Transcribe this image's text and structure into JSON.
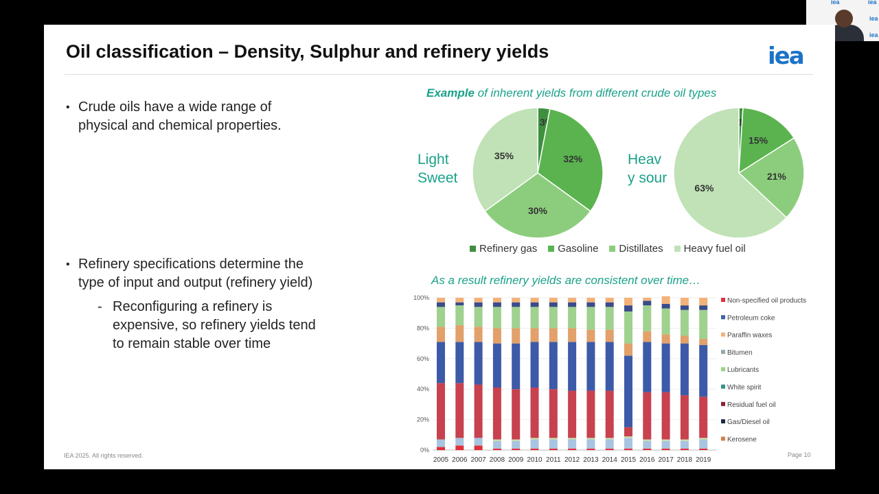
{
  "slide": {
    "title": "Oil classification – Density, Sulphur and refinery yields",
    "logo": "iea",
    "bullets": [
      {
        "line1": "Crude oils have a wide range of",
        "line2": "physical and chemical properties."
      },
      {
        "line1": "Refinery specifications determine the",
        "line2": "type of input and output (refinery yield)"
      }
    ],
    "sub_bullet": {
      "line1": "Reconfiguring a refinery is",
      "line2": "expensive, so refinery yields tend",
      "line3": "to remain stable over time"
    },
    "footer_left": "IEA 2025. All rights reserved.",
    "footer_right": "Page 10",
    "pie_title_bold": "Example",
    "pie_title_rest": " of inherent yields from different crude oil types",
    "pie_left_label": {
      "line1": "Light",
      "line2": "Sweet"
    },
    "pie_right_label": {
      "line1": "Heav",
      "line2": "y sour"
    },
    "bar_title": "As a result refinery yields are consistent over time…"
  },
  "webcam": {
    "logo": "iea"
  },
  "colors": {
    "teal": "#1aa189",
    "refinery_gas": "#3e8f3e",
    "gasoline": "#5ab34f",
    "distillates": "#8ccd7d",
    "heavy_fuel_oil": "#c0e2b6"
  },
  "chart_data": [
    {
      "type": "pie",
      "title": "Light Sweet",
      "categories": [
        "Refinery gas",
        "Gasoline",
        "Distillates",
        "Heavy fuel oil"
      ],
      "values": [
        3,
        32,
        30,
        35
      ],
      "labels": [
        "3%",
        "32%",
        "30%",
        "35%"
      ],
      "colors": [
        "#3e8f3e",
        "#5ab34f",
        "#8ccd7d",
        "#c0e2b6"
      ],
      "legend": "bottom"
    },
    {
      "type": "pie",
      "title": "Heavy sour",
      "categories": [
        "Refinery gas",
        "Gasoline",
        "Distillates",
        "Heavy fuel oil"
      ],
      "values": [
        1,
        15,
        21,
        63
      ],
      "labels": [
        "1%",
        "15%",
        "21%",
        "63%"
      ],
      "colors": [
        "#3e8f3e",
        "#5ab34f",
        "#8ccd7d",
        "#c0e2b6"
      ],
      "legend": "bottom"
    },
    {
      "type": "bar",
      "stacked": true,
      "categories": [
        "2005",
        "2006",
        "2007",
        "2008",
        "2009",
        "2010",
        "2011",
        "2012",
        "2013",
        "2014",
        "2015",
        "2016",
        "2017",
        "2018",
        "2019"
      ],
      "ylim": [
        0,
        100
      ],
      "yticks": [
        "0%",
        "20%",
        "40%",
        "60%",
        "80%",
        "100%"
      ],
      "legend": "right",
      "legend_entries": [
        {
          "name": "Non-specified oil products",
          "color": "#e0303a"
        },
        {
          "name": "Petroleum coke",
          "color": "#3c63a8"
        },
        {
          "name": "Paraffin waxes",
          "color": "#f2b27a"
        },
        {
          "name": "Bitumen",
          "color": "#9aa7b0"
        },
        {
          "name": "Lubricants",
          "color": "#9ad28c"
        },
        {
          "name": "White spirit",
          "color": "#3b8f8a"
        },
        {
          "name": "Residual fuel oil",
          "color": "#8b2333"
        },
        {
          "name": "Gas/Diesel oil",
          "color": "#1f2a44"
        },
        {
          "name": "Kerosene",
          "color": "#d4814a"
        }
      ],
      "series": [
        {
          "color": "#e0303a",
          "values": [
            2,
            3,
            3,
            1,
            1,
            1,
            1,
            1,
            1,
            1,
            1,
            1,
            1,
            1,
            1
          ]
        },
        {
          "color": "#a8c4e0",
          "values": [
            5,
            5,
            5,
            5,
            5,
            6,
            6,
            6,
            6,
            6,
            7,
            5,
            5,
            5,
            6
          ]
        },
        {
          "color": "#c9dfa8",
          "values": [
            0,
            0,
            0,
            1,
            1,
            1,
            1,
            1,
            1,
            1,
            1,
            1,
            1,
            1,
            1
          ]
        },
        {
          "color": "#c8414e",
          "values": [
            37,
            36,
            35,
            34,
            33,
            33,
            32,
            31,
            31,
            31,
            6,
            31,
            31,
            29,
            27
          ]
        },
        {
          "color": "#3c5aa8",
          "values": [
            27,
            27,
            28,
            29,
            30,
            30,
            31,
            32,
            32,
            32,
            47,
            33,
            32,
            34,
            34
          ]
        },
        {
          "color": "#e2a06a",
          "values": [
            10,
            11,
            10,
            10,
            10,
            9,
            9,
            9,
            8,
            8,
            8,
            7,
            6,
            5,
            4
          ]
        },
        {
          "color": "#9fd18f",
          "values": [
            13,
            13,
            13,
            14,
            14,
            14,
            14,
            14,
            15,
            15,
            21,
            17,
            17,
            17,
            19
          ]
        },
        {
          "color": "#3a4c8a",
          "values": [
            3,
            2,
            3,
            3,
            3,
            3,
            3,
            3,
            3,
            3,
            4,
            3,
            3,
            3,
            3
          ]
        },
        {
          "color": "#f2b27a",
          "values": [
            3,
            3,
            3,
            3,
            3,
            3,
            3,
            3,
            3,
            3,
            5,
            2,
            5,
            5,
            5
          ]
        }
      ]
    }
  ]
}
